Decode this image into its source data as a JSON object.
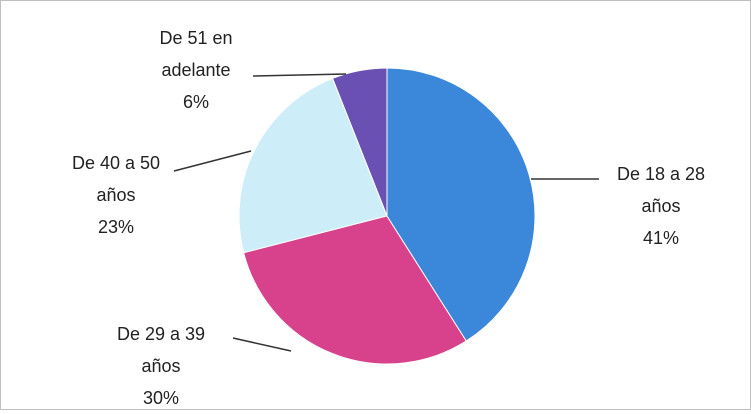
{
  "chart_data": {
    "type": "pie",
    "categories": [
      "De 18 a 28 años",
      "De 29 a 39 años",
      "De 40 a 50 años",
      "De 51 en adelante"
    ],
    "values": [
      41,
      30,
      23,
      6
    ],
    "value_labels": [
      "41%",
      "30%",
      "23%",
      "6%"
    ],
    "colors": [
      "#3b87d9",
      "#d8418b",
      "#cdeef8",
      "#6a50b2"
    ]
  }
}
